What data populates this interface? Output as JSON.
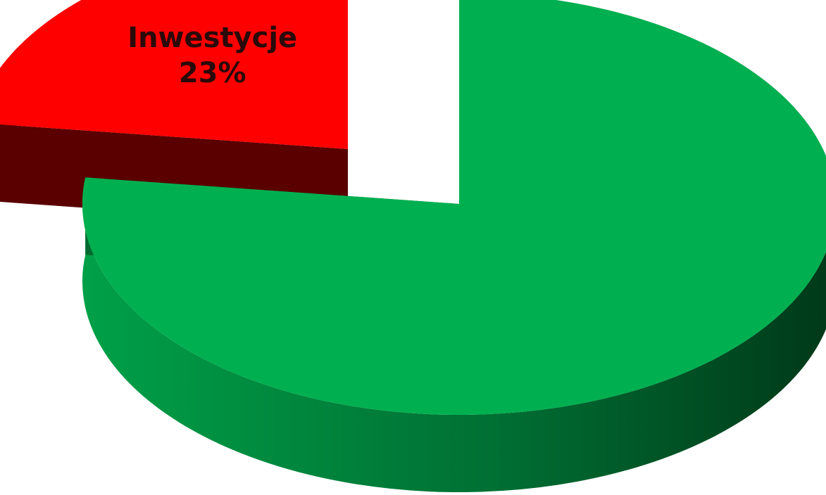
{
  "chart_data": {
    "type": "pie",
    "style": "3d-exploded",
    "slices": [
      {
        "label": "Inwestycje",
        "value": 23,
        "value_label": "23%",
        "color": "#ff0000",
        "side_color": "#5a0000",
        "exploded": true,
        "show_label": true
      },
      {
        "label": "",
        "value": 77,
        "value_label": "",
        "color": "#00b050",
        "side_color": "#006a30",
        "exploded": false,
        "show_label": false
      }
    ],
    "legend": "none",
    "grid": false
  }
}
